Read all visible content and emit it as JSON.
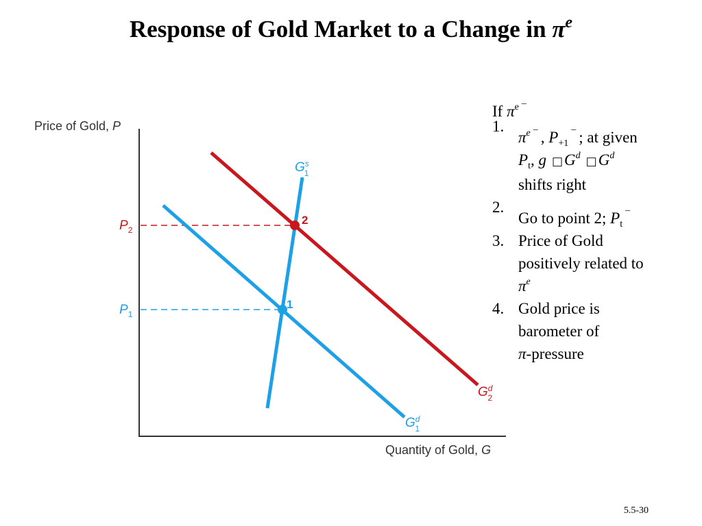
{
  "title": {
    "text": "Response of Gold Market to a Change in ",
    "pi": "π",
    "sup": "e"
  },
  "diagram": {
    "y_axis_label": "Price of Gold, ",
    "y_axis_var": "P",
    "x_axis_label": "Quantity of Gold, ",
    "x_axis_var": "G",
    "p1_label": "P",
    "p1_sub": "1",
    "p2_label": "P",
    "p2_sub": "2",
    "point1_label": "1",
    "point2_label": "2",
    "gs1_label": "G",
    "gs1_sup": "s",
    "gs1_sub": "1",
    "gd1_label": "G",
    "gd1_sup": "d",
    "gd1_sub": "1",
    "gd2_label": "G",
    "gd2_sup": "d",
    "gd2_sub": "2",
    "colors": {
      "blue": "#1ca0e6",
      "red": "#c8171d",
      "axis": "#333333"
    }
  },
  "notes": {
    "if_text": "If ",
    "if_pi": "π",
    "if_sup": "e",
    "bar": "_",
    "items": [
      {
        "num": "1.",
        "pi": "π",
        "pi_sup": "e",
        "comma_p": ", ",
        "p_var": "P",
        "p_sub": "+1",
        "at_given": "; at given",
        "pt": "P",
        "pt_sub": "t",
        "g_sep": ", ",
        "g": "g",
        "box": "□",
        "gd_a": "G",
        "gd_a_sup": "d",
        "gd_b": "G",
        "gd_b_sup": "d",
        "shifts": "shifts right"
      },
      {
        "num": "2.",
        "text": "Go to point 2; ",
        "p_var": "P",
        "p_sub": "t"
      },
      {
        "num": "3.",
        "line1": "Price of Gold",
        "line2": "positively related to",
        "pi": "π",
        "pi_sup": "e"
      },
      {
        "num": "4.",
        "line1": "Gold price is",
        "line2": "barometer of",
        "pi": "π",
        "tail": "-pressure"
      }
    ]
  },
  "footer": {
    "page": "5.5-30"
  }
}
